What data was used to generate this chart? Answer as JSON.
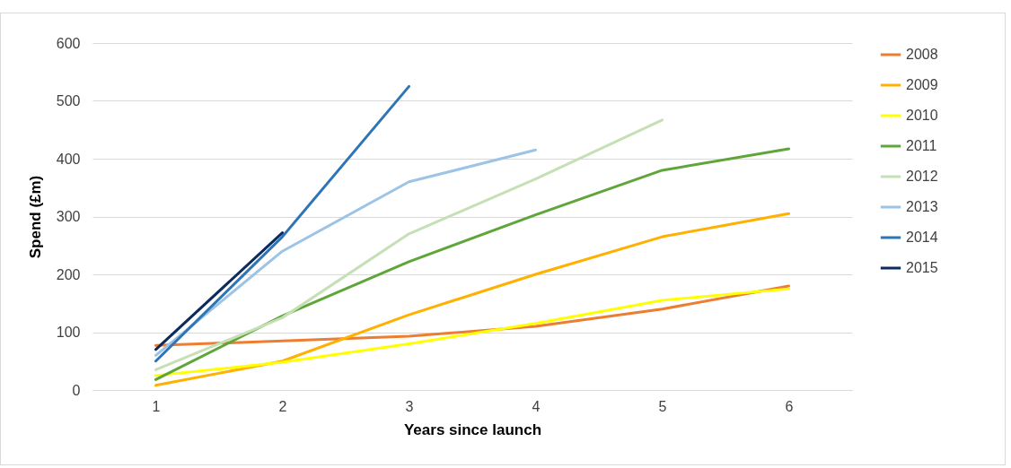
{
  "chart_data": {
    "type": "line",
    "xlabel": "Years since launch",
    "ylabel": "Spend (£m)",
    "categories": [
      "1",
      "2",
      "3",
      "4",
      "5",
      "6"
    ],
    "ylim": [
      0,
      600
    ],
    "yticks": [
      0,
      100,
      200,
      300,
      400,
      500,
      600
    ],
    "grid": "y",
    "legend": "right",
    "series": [
      {
        "name": "2008",
        "color": "#ed7d31",
        "values": [
          77,
          85,
          93,
          110,
          140,
          180
        ]
      },
      {
        "name": "2009",
        "color": "#ffb000",
        "values": [
          8,
          50,
          130,
          200,
          265,
          305
        ]
      },
      {
        "name": "2010",
        "color": "#ffff00",
        "values": [
          25,
          48,
          80,
          115,
          155,
          175
        ]
      },
      {
        "name": "2011",
        "color": "#5fa63a",
        "values": [
          18,
          128,
          222,
          303,
          380,
          417
        ]
      },
      {
        "name": "2012",
        "color": "#c5e0b4",
        "values": [
          35,
          125,
          270,
          365,
          467,
          null
        ]
      },
      {
        "name": "2013",
        "color": "#9dc3e6",
        "values": [
          60,
          240,
          360,
          415,
          null,
          null
        ]
      },
      {
        "name": "2014",
        "color": "#2e75b6",
        "values": [
          50,
          265,
          525,
          null,
          null,
          null
        ]
      },
      {
        "name": "2015",
        "color": "#0b2a5e",
        "values": [
          70,
          272,
          null,
          null,
          null,
          null
        ]
      }
    ]
  }
}
